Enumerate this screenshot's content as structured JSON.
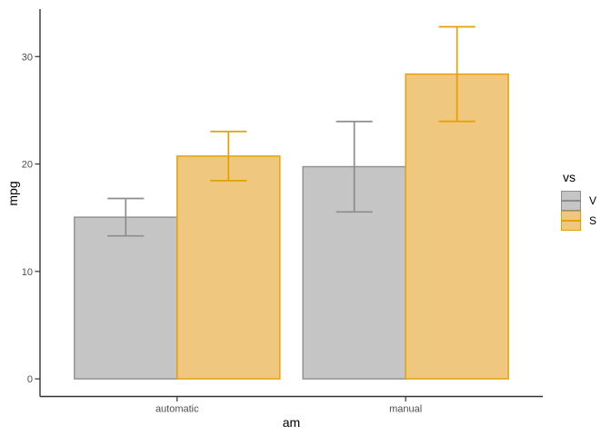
{
  "figure": {
    "background": "#FFFFFF",
    "axes": {
      "x_title": "am",
      "y_title": "mpg",
      "x_categories": [
        "automatic",
        "manual"
      ],
      "y_tick_labels": [
        "0",
        "10",
        "20",
        "30"
      ],
      "axis_color": "#333333",
      "tick_label_color": "#4D4D4D",
      "title_color": "#000000"
    },
    "legend": {
      "title": "vs",
      "entries": [
        {
          "label": "V",
          "fill": "#C5C5C5",
          "stroke": "#8E8E8E",
          "line": "#8C8C8C"
        },
        {
          "label": "S",
          "fill": "#F0C77E",
          "stroke": "#E69F00",
          "line": "#E69F00"
        }
      ]
    }
  },
  "chart_data": {
    "type": "bar",
    "title": "",
    "xlabel": "am",
    "ylabel": "mpg",
    "categories": [
      "automatic",
      "manual"
    ],
    "series": [
      {
        "name": "V",
        "values": [
          15.05,
          19.75
        ],
        "error_low": [
          13.31,
          15.54
        ],
        "error_high": [
          16.79,
          23.96
        ],
        "fill": "#C5C5C5",
        "stroke": "#8E8E8E",
        "error_color": "#8C8C8C"
      },
      {
        "name": "S",
        "values": [
          20.74,
          28.37
        ],
        "error_low": [
          18.45,
          23.97
        ],
        "error_high": [
          23.03,
          32.77
        ],
        "fill": "#F0C77E",
        "stroke": "#E69F00",
        "error_color": "#E69F00"
      }
    ],
    "yticks": [
      0,
      10,
      20,
      30
    ],
    "ylim": [
      -1.64,
      34.42
    ],
    "legend_title": "vs",
    "legend_position": "right",
    "legend_labels": [
      "V",
      "S"
    ],
    "grid": false,
    "error_bars": true
  }
}
